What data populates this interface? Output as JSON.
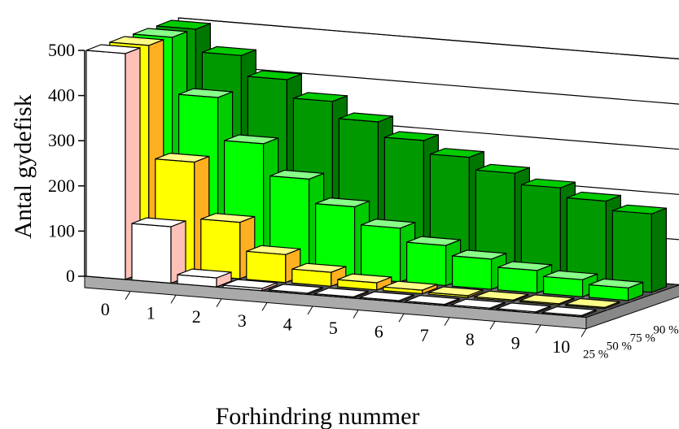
{
  "chart_data": {
    "type": "bar",
    "subtype": "3d-clustered-depth",
    "title": "",
    "xlabel": "Forhindring nummer",
    "ylabel": "Antal gydefisk",
    "ylim": [
      0,
      500
    ],
    "y_ticks": [
      "0",
      "100",
      "200",
      "300",
      "400",
      "500"
    ],
    "categories": [
      "0",
      "1",
      "2",
      "3",
      "4",
      "5",
      "6",
      "7",
      "8",
      "9",
      "10"
    ],
    "series": [
      {
        "name": "25 %",
        "color": "#ffffff",
        "side_color": "#ffc0b8",
        "top_color": "#ffffff",
        "values": [
          500,
          125,
          20,
          5,
          1,
          0,
          0,
          0,
          0,
          0,
          0
        ]
      },
      {
        "name": "50 %",
        "color": "#ffff00",
        "side_color": "#ffb020",
        "top_color": "#ffff88",
        "values": [
          500,
          250,
          125,
          62,
          31,
          16,
          8,
          4,
          2,
          1,
          0
        ]
      },
      {
        "name": "75 %",
        "color": "#00ff00",
        "side_color": "#00cc00",
        "top_color": "#88ff88",
        "values": [
          500,
          375,
          281,
          211,
          158,
          119,
          89,
          67,
          50,
          38,
          28
        ]
      },
      {
        "name": "90 %",
        "color": "#009900",
        "side_color": "#007700",
        "top_color": "#00cc00",
        "values": [
          500,
          450,
          405,
          365,
          328,
          295,
          266,
          239,
          215,
          194,
          174
        ]
      }
    ],
    "grid": true,
    "legend": "depth-axis-right"
  }
}
